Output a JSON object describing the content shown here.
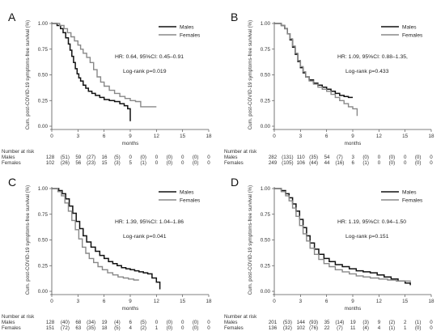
{
  "chart_data": [
    {
      "type": "line",
      "panel_label": "A",
      "ylabel": "Cum. post-COVID-19 symptoms-free survival (%)",
      "xlabel": "months",
      "xlim": [
        0,
        18
      ],
      "ylim": [
        0,
        1
      ],
      "x_ticks": [
        "0",
        "3",
        "6",
        "9",
        "12",
        "15",
        "18"
      ],
      "y_ticks": [
        "0.00",
        "0.25",
        "0.50",
        "0.75",
        "1.00"
      ],
      "legend_position": "top-right",
      "annotation_hr": "HR: 0.64, 95%CI: 0.45–0.91",
      "annotation_p": "Log-rank p=0.019",
      "series": [
        {
          "name": "Males",
          "color": "#111111",
          "x": [
            0,
            0.6,
            1.0,
            1.3,
            1.6,
            1.9,
            2.1,
            2.3,
            2.5,
            2.7,
            2.9,
            3.1,
            3.3,
            3.6,
            3.9,
            4.2,
            4.6,
            5.0,
            5.5,
            6.0,
            6.6,
            7.2,
            7.8,
            8.3,
            8.7,
            9.0
          ],
          "y": [
            1,
            0.98,
            0.95,
            0.91,
            0.86,
            0.8,
            0.74,
            0.68,
            0.62,
            0.56,
            0.51,
            0.47,
            0.44,
            0.4,
            0.37,
            0.34,
            0.32,
            0.3,
            0.28,
            0.26,
            0.25,
            0.24,
            0.22,
            0.2,
            0.17,
            0.05
          ]
        },
        {
          "name": "Females",
          "color": "#888888",
          "x": [
            0,
            0.9,
            1.4,
            1.8,
            2.2,
            2.6,
            3.0,
            3.3,
            3.6,
            4.0,
            4.4,
            4.8,
            5.2,
            5.6,
            6.0,
            6.6,
            7.2,
            7.8,
            8.4,
            9.0,
            9.6,
            10.2,
            12.0
          ],
          "y": [
            1,
            0.98,
            0.95,
            0.91,
            0.87,
            0.83,
            0.79,
            0.75,
            0.71,
            0.67,
            0.62,
            0.55,
            0.48,
            0.43,
            0.39,
            0.35,
            0.32,
            0.29,
            0.27,
            0.25,
            0.24,
            0.19,
            0.19
          ]
        }
      ],
      "risk_table": {
        "header": "Number at risk",
        "rows": [
          {
            "label": "Males",
            "values": [
              "128",
              "(51)",
              "59",
              "(27)",
              "16",
              "(5)",
              "0",
              "(0)",
              "0",
              "(0)",
              "0",
              "(0)",
              "0"
            ]
          },
          {
            "label": "Females",
            "values": [
              "102",
              "(26)",
              "56",
              "(23)",
              "15",
              "(3)",
              "5",
              "(1)",
              "0",
              "(0)",
              "0",
              "(0)",
              "0"
            ]
          }
        ]
      }
    },
    {
      "type": "line",
      "panel_label": "B",
      "ylabel": "Cum. post-COVID-19 symptoms-free survival (%)",
      "xlabel": "months",
      "xlim": [
        0,
        18
      ],
      "ylim": [
        0,
        1
      ],
      "x_ticks": [
        "0",
        "3",
        "6",
        "9",
        "12",
        "15",
        "18"
      ],
      "y_ticks": [
        "0.00",
        "0.25",
        "0.50",
        "0.75",
        "1.00"
      ],
      "legend_position": "top-right",
      "annotation_hr": "HR: 1.09, 95%CI: 0.88–1.35,",
      "annotation_p": "Log-rank p=0.433",
      "series": [
        {
          "name": "Males",
          "color": "#111111",
          "x": [
            0,
            0.8,
            1.2,
            1.5,
            1.8,
            2.1,
            2.4,
            2.7,
            3.0,
            3.3,
            3.6,
            4.0,
            4.5,
            5.0,
            5.5,
            6.0,
            6.5,
            7.0,
            7.5,
            8.0,
            8.5,
            9.0
          ],
          "y": [
            1,
            0.98,
            0.95,
            0.9,
            0.84,
            0.77,
            0.7,
            0.63,
            0.57,
            0.52,
            0.48,
            0.45,
            0.42,
            0.4,
            0.38,
            0.36,
            0.34,
            0.32,
            0.3,
            0.29,
            0.28,
            0.28
          ]
        },
        {
          "name": "Females",
          "color": "#888888",
          "x": [
            0,
            0.8,
            1.2,
            1.5,
            1.8,
            2.1,
            2.4,
            2.7,
            3.0,
            3.3,
            3.6,
            4.0,
            4.5,
            5.0,
            5.5,
            6.0,
            6.5,
            7.0,
            7.5,
            8.0,
            8.5,
            9.0,
            9.5
          ],
          "y": [
            1,
            0.98,
            0.95,
            0.9,
            0.85,
            0.78,
            0.71,
            0.64,
            0.58,
            0.53,
            0.48,
            0.44,
            0.41,
            0.38,
            0.36,
            0.34,
            0.31,
            0.28,
            0.25,
            0.22,
            0.19,
            0.17,
            0.1
          ]
        }
      ],
      "risk_table": {
        "header": "Number at risk",
        "rows": [
          {
            "label": "Males",
            "values": [
              "282",
              "(131)",
              "110",
              "(35)",
              "54",
              "(7)",
              "3",
              "(0)",
              "0",
              "(0)",
              "0",
              "(0)",
              "0"
            ]
          },
          {
            "label": "Females",
            "values": [
              "249",
              "(105)",
              "106",
              "(44)",
              "44",
              "(16)",
              "6",
              "(1)",
              "0",
              "(0)",
              "0",
              "(0)",
              "0"
            ]
          }
        ]
      }
    },
    {
      "type": "line",
      "panel_label": "C",
      "ylabel": "Cum. post-COVID-19 symptoms-free survival (%)",
      "xlabel": "months",
      "xlim": [
        0,
        18
      ],
      "ylim": [
        0,
        1
      ],
      "x_ticks": [
        "0",
        "3",
        "6",
        "9",
        "12",
        "15",
        "18"
      ],
      "y_ticks": [
        "0.00",
        "0.25",
        "0.50",
        "0.75",
        "1.00"
      ],
      "legend_position": "top-right",
      "annotation_hr": "HR: 1.39, 95%CI: 1.04–1.86",
      "annotation_p": "Log-rank p=0.041",
      "series": [
        {
          "name": "Males",
          "color": "#111111",
          "x": [
            0,
            0.8,
            1.2,
            1.6,
            2.0,
            2.4,
            2.8,
            3.2,
            3.6,
            4.0,
            4.5,
            5.0,
            5.5,
            6.0,
            6.5,
            7.0,
            7.5,
            8.0,
            8.5,
            9.0,
            9.5,
            10.0,
            10.5,
            11.0,
            11.5,
            12.0,
            12.4
          ],
          "y": [
            1,
            0.98,
            0.95,
            0.9,
            0.83,
            0.76,
            0.68,
            0.61,
            0.54,
            0.48,
            0.43,
            0.39,
            0.35,
            0.32,
            0.29,
            0.27,
            0.25,
            0.23,
            0.22,
            0.21,
            0.2,
            0.19,
            0.18,
            0.17,
            0.13,
            0.09,
            0.02
          ]
        },
        {
          "name": "Females",
          "color": "#888888",
          "x": [
            0,
            0.7,
            1.1,
            1.5,
            1.9,
            2.3,
            2.7,
            3.1,
            3.5,
            3.9,
            4.3,
            4.8,
            5.3,
            5.8,
            6.4,
            7.0,
            7.6,
            8.2,
            8.8,
            9.4,
            10.0
          ],
          "y": [
            1,
            0.97,
            0.93,
            0.86,
            0.78,
            0.69,
            0.6,
            0.51,
            0.43,
            0.37,
            0.32,
            0.28,
            0.24,
            0.21,
            0.18,
            0.16,
            0.14,
            0.13,
            0.12,
            0.11,
            0.11
          ]
        }
      ],
      "risk_table": {
        "header": "Number at risk",
        "rows": [
          {
            "label": "Males",
            "values": [
              "128",
              "(40)",
              "68",
              "(34)",
              "19",
              "(4)",
              "6",
              "(5)",
              "0",
              "(0)",
              "0",
              "(0)",
              "0"
            ]
          },
          {
            "label": "Females",
            "values": [
              "151",
              "(72)",
              "63",
              "(35)",
              "18",
              "(5)",
              "4",
              "(2)",
              "1",
              "(0)",
              "0",
              "(0)",
              "0"
            ]
          }
        ]
      }
    },
    {
      "type": "line",
      "panel_label": "D",
      "ylabel": "Cum. post-COVID-19 symptoms-free survival (%)",
      "xlabel": "months",
      "xlim": [
        0,
        18
      ],
      "ylim": [
        0,
        1
      ],
      "x_ticks": [
        "0",
        "3",
        "6",
        "9",
        "12",
        "15",
        "18"
      ],
      "y_ticks": [
        "0.00",
        "0.25",
        "0.50",
        "0.75",
        "1.00"
      ],
      "legend_position": "top-right",
      "annotation_hr": "HR: 1.19, 95%CI: 0.94–1.50",
      "annotation_p": "Log-rank p=0.151",
      "series": [
        {
          "name": "Males",
          "color": "#111111",
          "x": [
            0,
            0.8,
            1.3,
            1.7,
            2.1,
            2.5,
            2.9,
            3.3,
            3.7,
            4.1,
            4.6,
            5.1,
            5.7,
            6.3,
            7.0,
            7.8,
            8.6,
            9.4,
            10.2,
            11.0,
            11.8,
            12.6,
            13.4,
            14.2,
            15.0,
            15.6
          ],
          "y": [
            1,
            0.98,
            0.95,
            0.91,
            0.85,
            0.78,
            0.7,
            0.62,
            0.54,
            0.47,
            0.41,
            0.36,
            0.32,
            0.29,
            0.26,
            0.24,
            0.22,
            0.2,
            0.19,
            0.18,
            0.16,
            0.14,
            0.12,
            0.1,
            0.08,
            0.06
          ]
        },
        {
          "name": "Females",
          "color": "#888888",
          "x": [
            0,
            0.8,
            1.3,
            1.7,
            2.1,
            2.5,
            2.9,
            3.3,
            3.7,
            4.1,
            4.6,
            5.1,
            5.7,
            6.3,
            7.0,
            7.8,
            8.6,
            9.4,
            10.2,
            11.0,
            12.0,
            13.0,
            14.0,
            15.0,
            15.6
          ],
          "y": [
            1,
            0.97,
            0.93,
            0.88,
            0.81,
            0.73,
            0.64,
            0.56,
            0.49,
            0.42,
            0.36,
            0.31,
            0.27,
            0.24,
            0.21,
            0.19,
            0.17,
            0.15,
            0.14,
            0.13,
            0.12,
            0.11,
            0.1,
            0.1,
            0.09
          ]
        }
      ],
      "risk_table": {
        "header": "Number at risk",
        "rows": [
          {
            "label": "Males",
            "values": [
              "201",
              "(53)",
              "144",
              "(93)",
              "35",
              "(14)",
              "19",
              "(3)",
              "9",
              "(2)",
              "2",
              "(1)",
              "0"
            ]
          },
          {
            "label": "Females",
            "values": [
              "136",
              "(32)",
              "102",
              "(76)",
              "22",
              "(7)",
              "11",
              "(4)",
              "4",
              "(1)",
              "1",
              "(0)",
              "0"
            ]
          }
        ]
      }
    }
  ]
}
